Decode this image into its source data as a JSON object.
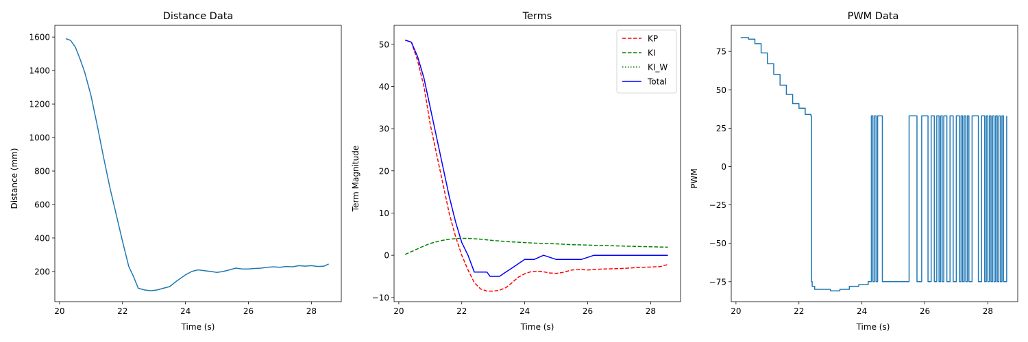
{
  "chart_data": [
    {
      "type": "line",
      "title": "Distance Data",
      "xlabel": "Time (s)",
      "ylabel": "Distance (mm)",
      "xlim": [
        19.85,
        28.95
      ],
      "ylim": [
        20,
        1670
      ],
      "xticks": [
        20,
        22,
        24,
        26,
        28
      ],
      "xtick_labels": [
        "20",
        "22",
        "24",
        "26",
        "28"
      ],
      "yticks": [
        200,
        400,
        600,
        800,
        1000,
        1200,
        1400,
        1600
      ],
      "ytick_labels": [
        "200",
        "400",
        "600",
        "800",
        "1000",
        "1200",
        "1400",
        "1600"
      ],
      "grid": false,
      "series": [
        {
          "color": "#1f77b4",
          "style": "solid",
          "x": [
            20.2,
            20.35,
            20.5,
            20.65,
            20.8,
            21.0,
            21.2,
            21.4,
            21.6,
            21.8,
            22.0,
            22.2,
            22.35,
            22.5,
            22.7,
            22.9,
            23.1,
            23.3,
            23.5,
            23.7,
            24.0,
            24.2,
            24.4,
            24.6,
            24.8,
            25.0,
            25.2,
            25.4,
            25.6,
            25.8,
            26.0,
            26.2,
            26.4,
            26.6,
            26.8,
            27.0,
            27.2,
            27.4,
            27.6,
            27.8,
            28.0,
            28.2,
            28.4,
            28.55
          ],
          "y": [
            1590,
            1580,
            1540,
            1470,
            1390,
            1250,
            1070,
            880,
            700,
            540,
            380,
            230,
            170,
            100,
            90,
            85,
            90,
            100,
            110,
            140,
            180,
            200,
            210,
            205,
            200,
            195,
            200,
            210,
            220,
            215,
            215,
            218,
            220,
            225,
            228,
            225,
            230,
            228,
            235,
            232,
            235,
            230,
            232,
            245
          ]
        }
      ]
    },
    {
      "type": "line",
      "title": "Terms",
      "xlabel": "Time (s)",
      "ylabel": "Term Magnitude",
      "xlim": [
        19.85,
        28.95
      ],
      "ylim": [
        -11,
        54.5
      ],
      "xticks": [
        20,
        22,
        24,
        26,
        28
      ],
      "xtick_labels": [
        "20",
        "22",
        "24",
        "26",
        "28"
      ],
      "yticks": [
        -10,
        0,
        10,
        20,
        30,
        40,
        50
      ],
      "ytick_labels": [
        "−10",
        "0",
        "10",
        "20",
        "30",
        "40",
        "50"
      ],
      "grid": false,
      "legend": "top-right",
      "series": [
        {
          "name": "KP",
          "color": "#ff0000",
          "style": "dashed",
          "x": [
            20.2,
            20.4,
            20.6,
            20.8,
            21.0,
            21.2,
            21.4,
            21.6,
            21.8,
            22.0,
            22.2,
            22.4,
            22.6,
            22.8,
            23.0,
            23.2,
            23.4,
            23.6,
            23.8,
            24.0,
            24.2,
            24.5,
            24.8,
            25.0,
            25.2,
            25.5,
            25.8,
            26.0,
            26.4,
            26.8,
            27.2,
            27.6,
            28.0,
            28.3,
            28.55
          ],
          "y": [
            51,
            50.5,
            46,
            40,
            31,
            24,
            17,
            10,
            4.5,
            0,
            -3.5,
            -6.5,
            -8,
            -8.5,
            -8.5,
            -8.3,
            -7.7,
            -6.5,
            -5.2,
            -4.4,
            -3.9,
            -3.8,
            -4.2,
            -4.3,
            -4.1,
            -3.5,
            -3.4,
            -3.5,
            -3.3,
            -3.2,
            -3.1,
            -2.9,
            -2.8,
            -2.7,
            -2.2
          ]
        },
        {
          "name": "KI",
          "color": "#008000",
          "style": "dashed",
          "x": [
            20.2,
            20.5,
            20.8,
            21.0,
            21.3,
            21.6,
            21.9,
            22.2,
            22.6,
            23.0,
            23.5,
            24.0,
            24.5,
            25.0,
            25.5,
            26.0,
            26.5,
            27.0,
            27.5,
            28.0,
            28.55
          ],
          "y": [
            0.2,
            1.2,
            2.2,
            2.8,
            3.4,
            3.8,
            4.0,
            4.0,
            3.8,
            3.5,
            3.2,
            3.0,
            2.8,
            2.7,
            2.5,
            2.4,
            2.3,
            2.2,
            2.1,
            2.0,
            1.9
          ]
        },
        {
          "name": "KI_W",
          "color": "#008000",
          "style": "dotted",
          "x": [],
          "y": []
        },
        {
          "name": "Total",
          "color": "#0000ff",
          "style": "solid",
          "x": [
            20.2,
            20.4,
            20.6,
            20.8,
            21.0,
            21.2,
            21.4,
            21.6,
            21.8,
            22.0,
            22.2,
            22.4,
            22.6,
            22.8,
            22.9,
            23.0,
            23.2,
            23.4,
            23.6,
            23.8,
            24.0,
            24.3,
            24.6,
            25.0,
            25.4,
            25.8,
            26.2,
            26.6,
            27.0,
            27.4,
            27.8,
            28.2,
            28.55
          ],
          "y": [
            51,
            50.5,
            47,
            42,
            35,
            28,
            21,
            14,
            8,
            3,
            0,
            -4,
            -4,
            -4,
            -5,
            -5,
            -5,
            -4,
            -3,
            -2,
            -1,
            -1,
            0,
            -1,
            -1,
            -1,
            0,
            0,
            0,
            0,
            0,
            0,
            0
          ]
        }
      ]
    },
    {
      "type": "line",
      "title": "PWM Data",
      "xlabel": "Time (s)",
      "ylabel": "PWM",
      "xlim": [
        19.85,
        28.95
      ],
      "ylim": [
        -88,
        92
      ],
      "xticks": [
        20,
        22,
        24,
        26,
        28
      ],
      "xtick_labels": [
        "20",
        "22",
        "24",
        "26",
        "28"
      ],
      "yticks": [
        -75,
        -50,
        -25,
        0,
        25,
        50,
        75
      ],
      "ytick_labels": [
        "−75",
        "−50",
        "−25",
        "0",
        "25",
        "50",
        "75"
      ],
      "grid": false,
      "series": [
        {
          "color": "#1f77b4",
          "style": "solid",
          "step": true,
          "x": [
            20.15,
            20.4,
            20.6,
            20.8,
            21.0,
            21.2,
            21.4,
            21.6,
            21.8,
            22.0,
            22.2,
            22.38,
            22.4,
            22.42,
            22.5,
            22.8,
            23.0,
            23.3,
            23.6,
            23.9,
            24.2,
            24.3,
            24.35,
            24.4,
            24.45,
            24.5,
            24.65,
            25.5,
            25.75,
            25.9,
            26.1,
            26.2,
            26.3,
            26.38,
            26.45,
            26.5,
            26.55,
            26.6,
            26.7,
            26.8,
            26.9,
            27.0,
            27.1,
            27.15,
            27.2,
            27.25,
            27.3,
            27.35,
            27.4,
            27.5,
            27.7,
            27.8,
            27.9,
            27.95,
            28.0,
            28.05,
            28.1,
            28.15,
            28.2,
            28.25,
            28.3,
            28.35,
            28.4,
            28.45,
            28.5,
            28.6
          ],
          "y": [
            84,
            83,
            80,
            74,
            67,
            60,
            53,
            47,
            41,
            38,
            34,
            33,
            -75,
            -78,
            -80,
            -80,
            -81,
            -80,
            -78,
            -77,
            -75,
            33,
            -75,
            33,
            -75,
            33,
            -75,
            33,
            -75,
            33,
            -75,
            33,
            -75,
            33,
            -75,
            33,
            -75,
            33,
            -75,
            33,
            -75,
            33,
            -75,
            33,
            -75,
            33,
            -75,
            33,
            -75,
            33,
            -75,
            33,
            -75,
            33,
            -75,
            33,
            -75,
            33,
            -75,
            33,
            -75,
            33,
            -75,
            33,
            -75,
            33
          ]
        }
      ]
    }
  ]
}
